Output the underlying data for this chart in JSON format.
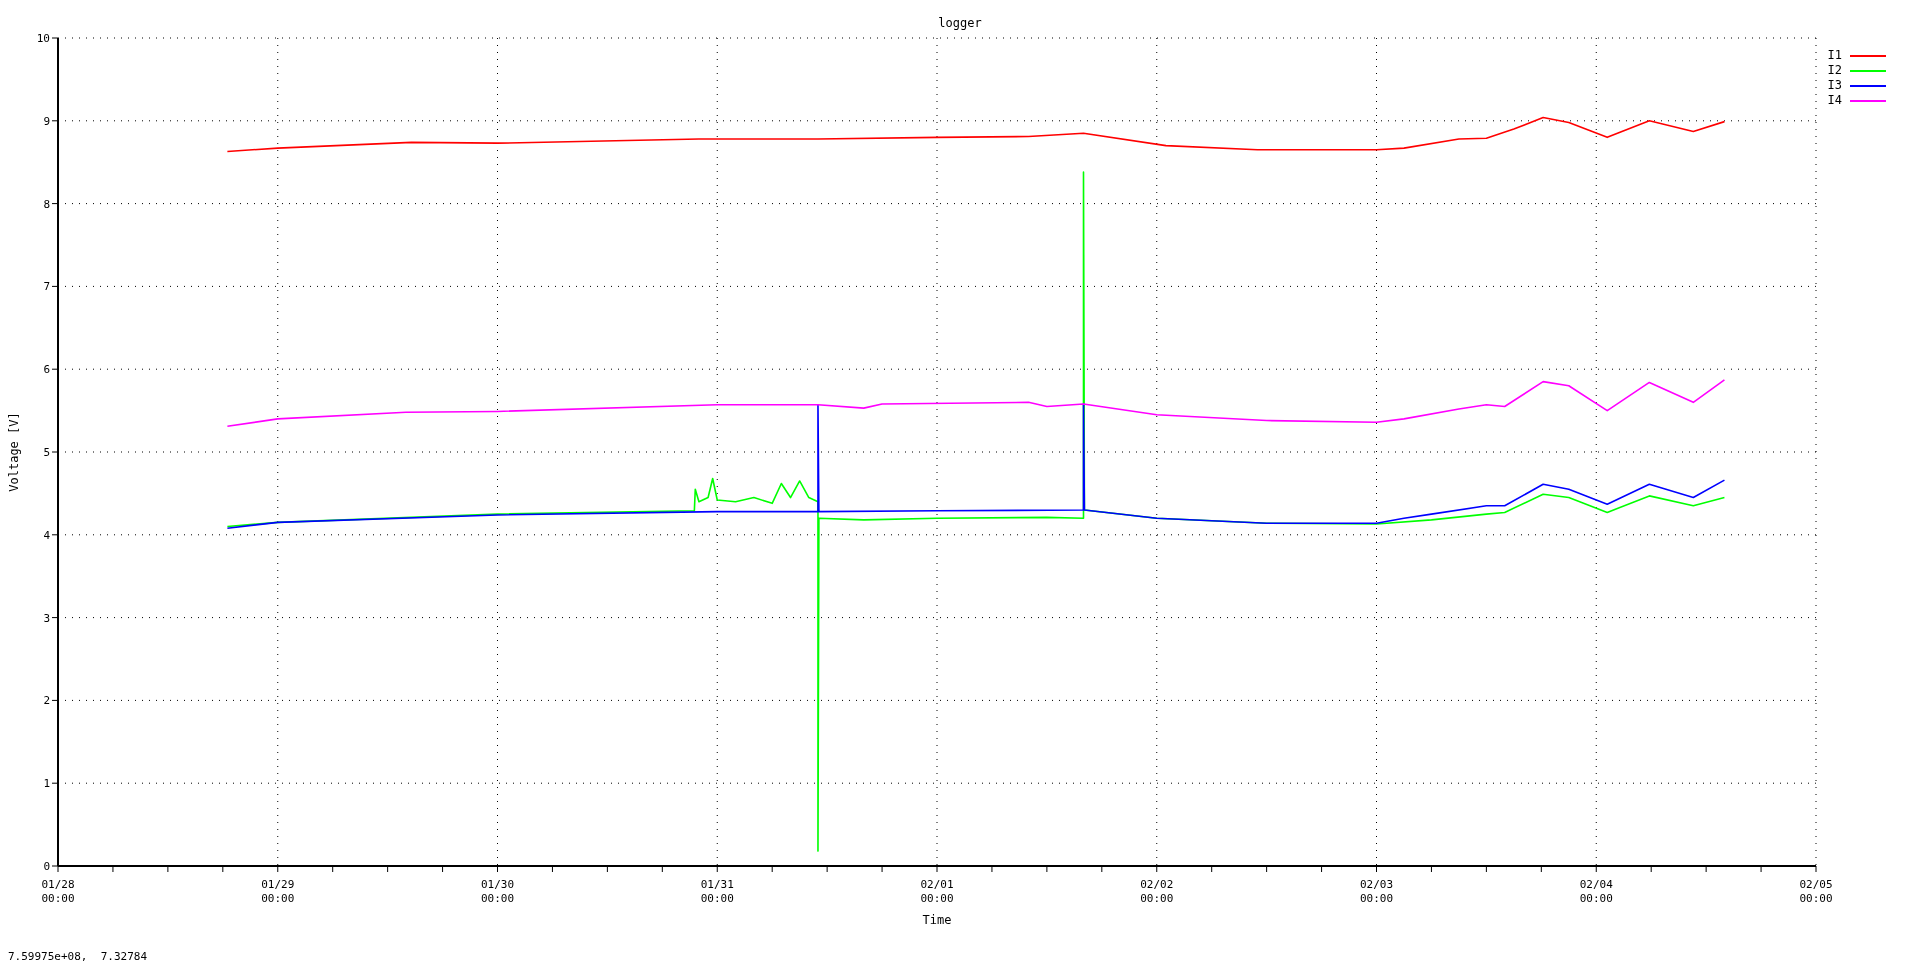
{
  "chart_data": {
    "type": "line",
    "title": "logger",
    "xlabel": "Time",
    "ylabel": "Voltage [V]",
    "annotations": [
      "7.59975e+08,  7.32784"
    ],
    "xlim": [
      "--01-28T00:00",
      "--02-05T00:00"
    ],
    "xticks": [
      {
        "value": "--01-28T00:00",
        "label": "01/28\n00:00"
      },
      {
        "value": "--01-28T06:00",
        "label": null
      },
      {
        "value": "--01-28T12:00",
        "label": null
      },
      {
        "value": "--01-28T18:00",
        "label": null
      },
      {
        "value": "--01-29T00:00",
        "label": "01/29\n00:00"
      },
      {
        "value": "--01-29T06:00",
        "label": null
      },
      {
        "value": "--01-29T12:00",
        "label": null
      },
      {
        "value": "--01-29T18:00",
        "label": null
      },
      {
        "value": "--01-30T00:00",
        "label": "01/30\n00:00"
      },
      {
        "value": "--01-30T06:00",
        "label": null
      },
      {
        "value": "--01-30T12:00",
        "label": null
      },
      {
        "value": "--01-30T18:00",
        "label": null
      },
      {
        "value": "--01-31T00:00",
        "label": "01/31\n00:00"
      },
      {
        "value": "--01-31T06:00",
        "label": null
      },
      {
        "value": "--01-31T12:00",
        "label": null
      },
      {
        "value": "--01-31T18:00",
        "label": null
      },
      {
        "value": "--02-01T00:00",
        "label": "02/01\n00:00"
      },
      {
        "value": "--02-01T06:00",
        "label": null
      },
      {
        "value": "--02-01T12:00",
        "label": null
      },
      {
        "value": "--02-01T18:00",
        "label": null
      },
      {
        "value": "--02-02T00:00",
        "label": "02/02\n00:00"
      },
      {
        "value": "--02-02T06:00",
        "label": null
      },
      {
        "value": "--02-02T12:00",
        "label": null
      },
      {
        "value": "--02-02T18:00",
        "label": null
      },
      {
        "value": "--02-03T00:00",
        "label": "02/03\n00:00"
      },
      {
        "value": "--02-03T06:00",
        "label": null
      },
      {
        "value": "--02-03T12:00",
        "label": null
      },
      {
        "value": "--02-03T18:00",
        "label": null
      },
      {
        "value": "--02-04T00:00",
        "label": "02/04\n00:00"
      },
      {
        "value": "--02-04T06:00",
        "label": null
      },
      {
        "value": "--02-04T12:00",
        "label": null
      },
      {
        "value": "--02-04T18:00",
        "label": null
      },
      {
        "value": "--02-05T00:00",
        "label": "02/05\n00:00"
      }
    ],
    "ylim": [
      0,
      10
    ],
    "yticks": [
      0,
      1,
      2,
      3,
      4,
      5,
      6,
      7,
      8,
      9,
      10
    ],
    "grid": true,
    "legend": "top right",
    "line_style": "solid",
    "marker": "none",
    "series": [
      {
        "name": "I1",
        "color": "#ff0000",
        "x": [
          "--01-28T18:30",
          "--01-29T00:00",
          "--01-29T14:36",
          "--01-30T00:00",
          "--01-30T22:00",
          "--01-31T11:00",
          "--02-01T00:00",
          "--02-01T10:00",
          "--02-01T16:00",
          "--02-02T01:00",
          "--02-02T11:00",
          "--02-03T00:00",
          "--02-03T03:00",
          "--02-03T09:00",
          "--02-03T12:00",
          "--02-03T15:00",
          "--02-03T18:12",
          "--02-03T21:00",
          "--02-04T01:12",
          "--02-04T05:48",
          "--02-04T10:36",
          "--02-04T14:00"
        ],
        "values": [
          8.63,
          8.67,
          8.74,
          8.73,
          8.78,
          8.78,
          8.8,
          8.81,
          8.85,
          8.7,
          8.65,
          8.65,
          8.67,
          8.78,
          8.79,
          8.9,
          9.04,
          8.98,
          8.8,
          9.0,
          8.87,
          8.99
        ]
      },
      {
        "name": "I2",
        "color": "#00ff00",
        "x": [
          "--01-28T18:30",
          "--01-29T00:00",
          "--01-30T00:00",
          "--01-30T21:30",
          "--01-30T21:36",
          "--01-30T22:00",
          "--01-30T23:00",
          "--01-30T23:30",
          "--01-31T00:00",
          "--01-31T02:00",
          "--01-31T04:00",
          "--01-31T06:00",
          "--01-31T07:00",
          "--01-31T08:00",
          "--01-31T09:00",
          "--01-31T10:00",
          "--01-31T11:00",
          "--01-31T11:00",
          "--01-31T11:06",
          "--01-31T16:00",
          "--02-01T00:00",
          "--02-01T12:00",
          "--02-01T16:00",
          "--02-01T16:00",
          "--02-01T16:06",
          "--02-02T00:00",
          "--02-02T12:00",
          "--02-03T00:00",
          "--02-03T06:00",
          "--02-03T12:00",
          "--02-03T14:00",
          "--02-03T18:12",
          "--02-03T21:00",
          "--02-04T01:12",
          "--02-04T05:48",
          "--02-04T10:36",
          "--02-04T14:00"
        ],
        "values": [
          4.1,
          4.15,
          4.25,
          4.29,
          4.55,
          4.4,
          4.45,
          4.68,
          4.42,
          4.4,
          4.45,
          4.38,
          4.62,
          4.45,
          4.65,
          4.45,
          4.4,
          0.18,
          4.2,
          4.18,
          4.2,
          4.21,
          4.2,
          8.38,
          4.3,
          4.2,
          4.14,
          4.13,
          4.18,
          4.25,
          4.27,
          4.49,
          4.45,
          4.27,
          4.47,
          4.35,
          4.45
        ]
      },
      {
        "name": "I3",
        "color": "#0000ff",
        "x": [
          "--01-28T18:30",
          "--01-29T00:00",
          "--01-30T00:00",
          "--01-31T00:00",
          "--01-31T11:00",
          "--01-31T11:00",
          "--01-31T11:06",
          "--02-01T00:00",
          "--02-01T16:00",
          "--02-01T16:00",
          "--02-01T16:06",
          "--02-02T00:00",
          "--02-02T12:00",
          "--02-03T00:00",
          "--02-03T03:00",
          "--02-03T06:00",
          "--02-03T12:00",
          "--02-03T14:00",
          "--02-03T18:12",
          "--02-03T21:00",
          "--02-04T01:12",
          "--02-04T05:48",
          "--02-04T10:36",
          "--02-04T14:00"
        ],
        "values": [
          4.08,
          4.15,
          4.24,
          4.28,
          4.28,
          5.57,
          4.28,
          4.29,
          4.3,
          5.58,
          4.3,
          4.2,
          4.14,
          4.14,
          4.2,
          4.25,
          4.35,
          4.35,
          4.61,
          4.55,
          4.37,
          4.61,
          4.45,
          4.66
        ]
      },
      {
        "name": "I4",
        "color": "#ff00ff",
        "x": [
          "--01-28T18:30",
          "--01-29T00:00",
          "--01-29T14:00",
          "--01-30T00:00",
          "--01-31T00:00",
          "--01-31T11:00",
          "--01-31T16:00",
          "--01-31T18:00",
          "--02-01T10:00",
          "--02-01T12:00",
          "--02-01T16:00",
          "--02-02T00:00",
          "--02-02T12:00",
          "--02-03T00:00",
          "--02-03T03:00",
          "--02-03T09:00",
          "--02-03T12:00",
          "--02-03T14:00",
          "--02-03T18:12",
          "--02-03T21:00",
          "--02-04T01:12",
          "--02-04T05:48",
          "--02-04T10:36",
          "--02-04T14:00"
        ],
        "values": [
          5.31,
          5.4,
          5.48,
          5.49,
          5.57,
          5.57,
          5.53,
          5.58,
          5.6,
          5.55,
          5.58,
          5.45,
          5.38,
          5.36,
          5.4,
          5.52,
          5.57,
          5.55,
          5.85,
          5.8,
          5.5,
          5.84,
          5.6,
          5.87
        ]
      }
    ]
  }
}
